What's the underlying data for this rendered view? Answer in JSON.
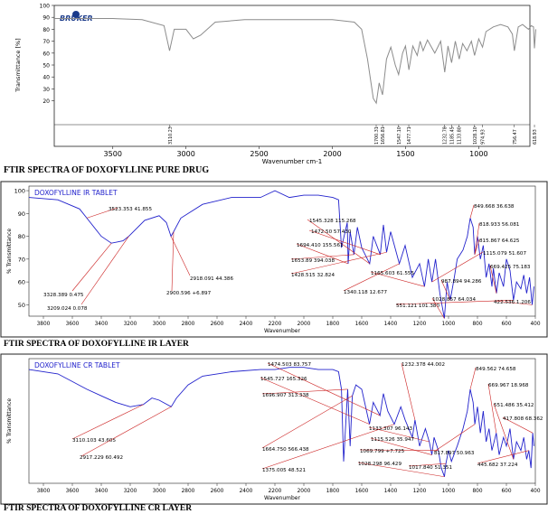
{
  "captions": {
    "pure": "FTIR SPECTRA OF DOXOFYLLINE PURE DRUG",
    "ir": "FTIR SPECTRA OF DOXOFYLLINE IR LAYER",
    "cr": "FTIR SPECTRA OF DOXOFYLLINE CR LAYER"
  },
  "colors": {
    "pure_line": "#8c8c8c",
    "blue": "#2222cc",
    "red": "#cc2222",
    "axis": "#222222"
  },
  "chart_data": [
    {
      "id": "pure",
      "type": "line",
      "logo": "BRUKER",
      "xlabel": "Wavenumber cm-1",
      "ylabel": "Transmittance [%]",
      "xlim": [
        3900,
        650
      ],
      "ylim": [
        0,
        100
      ],
      "x_ticks": [
        3500,
        3000,
        2500,
        2000,
        1500,
        1000
      ],
      "y_ticks": [
        20,
        30,
        40,
        50,
        60,
        70,
        80,
        90,
        100
      ],
      "peak_labels": [
        "3110.23",
        "1700.31",
        "1656.81",
        "1547.10",
        "1477.71",
        "1232.78",
        "1185.45",
        "1133.80",
        "1028.10",
        "974.93",
        "756.47",
        "618.93"
      ],
      "series": [
        {
          "x": [
            3900,
            3700,
            3500,
            3300,
            3150,
            3112,
            3080,
            3000,
            2950,
            2900,
            2800,
            2600,
            2400,
            2200,
            2000,
            1850,
            1800,
            1760,
            1720,
            1700,
            1680,
            1657,
            1630,
            1600,
            1570,
            1547,
            1520,
            1500,
            1477,
            1450,
            1420,
            1400,
            1380,
            1350,
            1300,
            1260,
            1232,
            1210,
            1185,
            1160,
            1133,
            1110,
            1080,
            1050,
            1028,
            1000,
            974,
            950,
            900,
            850,
            800,
            770,
            756,
            730,
            700,
            680,
            660,
            640,
            625,
            619,
            610
          ],
          "y": [
            89,
            89,
            89,
            88,
            83,
            62,
            80,
            80,
            72,
            75,
            86,
            88,
            88,
            88,
            88,
            86,
            80,
            55,
            22,
            18,
            35,
            25,
            55,
            65,
            50,
            42,
            60,
            66,
            46,
            66,
            58,
            70,
            62,
            71,
            60,
            70,
            44,
            66,
            52,
            70,
            55,
            68,
            62,
            70,
            58,
            72,
            65,
            78,
            82,
            84,
            82,
            76,
            62,
            82,
            84,
            82,
            80,
            83,
            82,
            64,
            80
          ]
        }
      ]
    },
    {
      "id": "ir",
      "type": "line",
      "title": "DOXOFYLLINE IR TABLET",
      "xlabel": "Wavenumber",
      "ylabel": "% Transmittance",
      "xlim": [
        3900,
        400
      ],
      "ylim": [
        45,
        102
      ],
      "x_ticks": [
        3800,
        3600,
        3400,
        3200,
        3000,
        2800,
        2600,
        2400,
        2200,
        2000,
        1800,
        1600,
        1400,
        1200,
        1000,
        800,
        600,
        400
      ],
      "y_ticks": [
        50,
        60,
        70,
        80,
        90,
        100
      ],
      "peak_labels": [
        "3523.353  41.855",
        "3328.389  0.475",
        "3209.024  0.078",
        "2918.091  44.386",
        "2900.596  +6.897",
        "1545.328  115.268",
        "1472.50  57.430",
        "1694.410  155.561",
        "1653.89  394.038",
        "1428.515  32.824",
        "1340.118  12.677",
        "1165.603  61.555",
        "849.668  36.638",
        "818.933  56.081",
        "815.867  64.625",
        "1115.079  51.607",
        "669.425  75.183",
        "987.894  94.286",
        "551.121  101.380",
        "1028.857  64.034",
        "422.536  1.206"
      ],
      "series": [
        {
          "x": [
            3900,
            3700,
            3550,
            3500,
            3400,
            3330,
            3250,
            3210,
            3100,
            3000,
            2950,
            2918,
            2900,
            2850,
            2700,
            2500,
            2300,
            2200,
            2100,
            2000,
            1900,
            1800,
            1760,
            1740,
            1700,
            1694,
            1680,
            1654,
            1630,
            1600,
            1545,
            1520,
            1472,
            1450,
            1428,
            1400,
            1340,
            1300,
            1250,
            1200,
            1166,
            1140,
            1115,
            1090,
            1060,
            1040,
            1029,
            1010,
            988,
            960,
            940,
            900,
            870,
            850,
            830,
            819,
            800,
            780,
            760,
            740,
            720,
            700,
            690,
            669,
            650,
            620,
            600,
            575,
            551,
            530,
            500,
            480,
            460,
            440,
            422,
            410
          ],
          "y": [
            97,
            96,
            92,
            88,
            80,
            77,
            78,
            80,
            87,
            89,
            86,
            80,
            82,
            88,
            94,
            97,
            97,
            100,
            97,
            98,
            98,
            97,
            96,
            75,
            86,
            68,
            82,
            72,
            84,
            75,
            68,
            80,
            72,
            85,
            73,
            82,
            68,
            76,
            62,
            68,
            58,
            70,
            60,
            70,
            55,
            48,
            44,
            60,
            52,
            62,
            70,
            74,
            80,
            88,
            84,
            72,
            80,
            70,
            76,
            62,
            68,
            58,
            66,
            55,
            64,
            58,
            70,
            65,
            52,
            60,
            57,
            63,
            55,
            62,
            50,
            58
          ]
        }
      ]
    },
    {
      "id": "cr",
      "type": "line",
      "title": "DOXOFYLLINE CR TABLET",
      "xlabel": "Wavenumber",
      "ylabel": "% Transmittance",
      "xlim": [
        3900,
        400
      ],
      "ylim": [
        45,
        102
      ],
      "x_ticks": [
        3800,
        3600,
        3400,
        3200,
        3000,
        2800,
        2600,
        2400,
        2200,
        2000,
        1800,
        1600,
        1400,
        1200,
        1000,
        800,
        600,
        400
      ],
      "y_ticks": [],
      "peak_labels": [
        "3110.103  43.605",
        "2917.229  60.492",
        "1474.503  83.757",
        "1545.727  165.326",
        "1696.907  313.338",
        "1664.750  566.438",
        "1375.005  48.521",
        "1232.378  44.002",
        "1133.307  96.143",
        "1115.526  35.947",
        "1069.799  +7.725",
        "1028.298  96.429",
        "849.562  74.658",
        "669.967  18.968",
        "551.486  35.412",
        "417.808  68.362",
        "817.897  50.963",
        "1017.840  51.351",
        "445.682  37.224"
      ],
      "series": [
        {
          "x": [
            3900,
            3700,
            3500,
            3400,
            3300,
            3200,
            3110,
            3050,
            3000,
            2917,
            2880,
            2800,
            2700,
            2500,
            2300,
            2200,
            2100,
            2000,
            1900,
            1800,
            1760,
            1740,
            1725,
            1697,
            1680,
            1665,
            1640,
            1600,
            1546,
            1520,
            1474,
            1450,
            1420,
            1375,
            1330,
            1300,
            1250,
            1232,
            1200,
            1160,
            1133,
            1115,
            1100,
            1070,
            1050,
            1028,
            1018,
            1000,
            980,
            940,
            900,
            870,
            850,
            830,
            818,
            800,
            780,
            760,
            740,
            720,
            700,
            670,
            650,
            620,
            600,
            575,
            551,
            530,
            500,
            480,
            460,
            445,
            430,
            418,
            410
          ],
          "y": [
            97,
            95,
            88,
            85,
            82,
            80,
            81,
            84,
            83,
            80,
            84,
            90,
            94,
            96,
            97,
            97,
            98,
            98,
            97,
            97,
            96,
            88,
            55,
            88,
            62,
            85,
            90,
            88,
            72,
            82,
            76,
            86,
            78,
            72,
            80,
            74,
            66,
            74,
            62,
            70,
            64,
            58,
            66,
            60,
            52,
            48,
            54,
            60,
            55,
            62,
            70,
            78,
            88,
            82,
            72,
            80,
            68,
            78,
            64,
            70,
            60,
            68,
            58,
            66,
            62,
            70,
            56,
            64,
            60,
            66,
            56,
            60,
            52,
            68,
            62
          ]
        }
      ]
    }
  ]
}
